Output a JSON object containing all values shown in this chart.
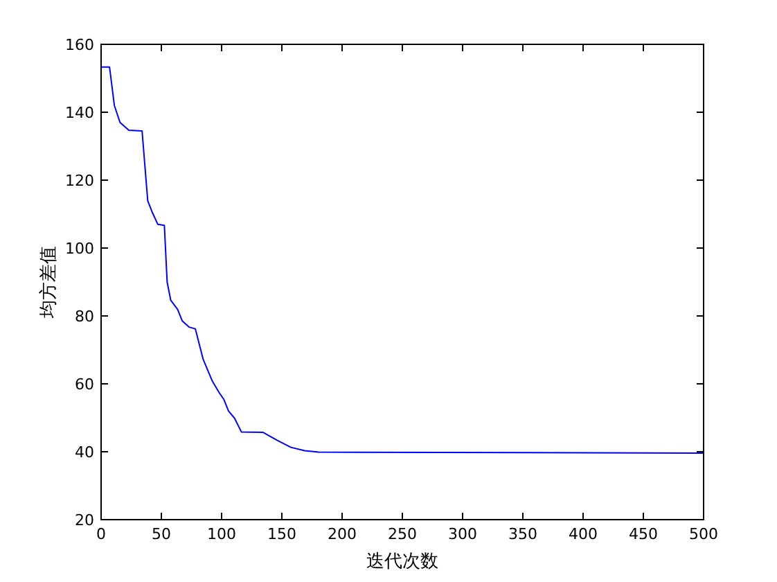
{
  "chart_data": {
    "type": "line",
    "xlabel": "迭代次数",
    "ylabel": "均方差值",
    "xlim": [
      0,
      500
    ],
    "ylim": [
      20,
      160
    ],
    "xticks": [
      0,
      50,
      100,
      150,
      200,
      250,
      300,
      350,
      400,
      450,
      500
    ],
    "yticks": [
      20,
      40,
      60,
      80,
      100,
      120,
      140,
      160
    ],
    "grid": false,
    "marker": "none",
    "line_style": "solid",
    "series": [
      {
        "color": "#0000ff",
        "x": [
          0,
          7,
          11,
          15.7,
          23,
          34,
          38.7,
          42.5,
          47,
          52.5,
          54.8,
          57.8,
          63.5,
          67.4,
          73.1,
          78.2,
          84.7,
          92.3,
          98,
          101.9,
          105.7,
          110.7,
          116.5,
          134.5,
          146,
          157.5,
          169,
          180.5,
          500
        ],
        "values": [
          153.3,
          153.3,
          142,
          137,
          134.7,
          134.5,
          113.9,
          110.5,
          107,
          106.7,
          90,
          84.6,
          81.9,
          78.5,
          76.7,
          76.2,
          67.2,
          60.8,
          57.4,
          55.4,
          52,
          49.9,
          45.8,
          45.7,
          43.4,
          41.3,
          40.3,
          39.9,
          39.6
        ]
      }
    ]
  }
}
